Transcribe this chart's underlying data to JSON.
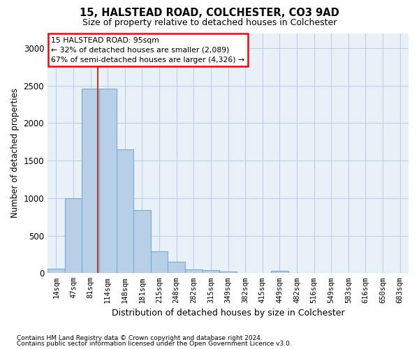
{
  "title1": "15, HALSTEAD ROAD, COLCHESTER, CO3 9AD",
  "title2": "Size of property relative to detached houses in Colchester",
  "xlabel": "Distribution of detached houses by size in Colchester",
  "ylabel": "Number of detached properties",
  "footnote1": "Contains HM Land Registry data © Crown copyright and database right 2024.",
  "footnote2": "Contains public sector information licensed under the Open Government Licence v3.0.",
  "annotation_line1": "15 HALSTEAD ROAD: 95sqm",
  "annotation_line2": "← 32% of detached houses are smaller (2,089)",
  "annotation_line3": "67% of semi-detached houses are larger (4,326) →",
  "bar_color": "#b8cfe8",
  "bar_edge_color": "#7aaad0",
  "highlight_color": "#c0392b",
  "categories": [
    "14sqm",
    "47sqm",
    "81sqm",
    "114sqm",
    "148sqm",
    "181sqm",
    "215sqm",
    "248sqm",
    "282sqm",
    "315sqm",
    "349sqm",
    "382sqm",
    "415sqm",
    "449sqm",
    "482sqm",
    "516sqm",
    "549sqm",
    "583sqm",
    "616sqm",
    "650sqm",
    "683sqm"
  ],
  "values": [
    60,
    1000,
    2460,
    2460,
    1650,
    840,
    290,
    155,
    50,
    40,
    20,
    0,
    0,
    30,
    0,
    0,
    0,
    0,
    0,
    0,
    0
  ],
  "red_line_x": 2.42,
  "ylim": [
    0,
    3200
  ],
  "yticks": [
    0,
    500,
    1000,
    1500,
    2000,
    2500,
    3000
  ],
  "background_color": "#ffffff",
  "ax_background": "#e8f0f8",
  "grid_color": "#c0d0e0"
}
